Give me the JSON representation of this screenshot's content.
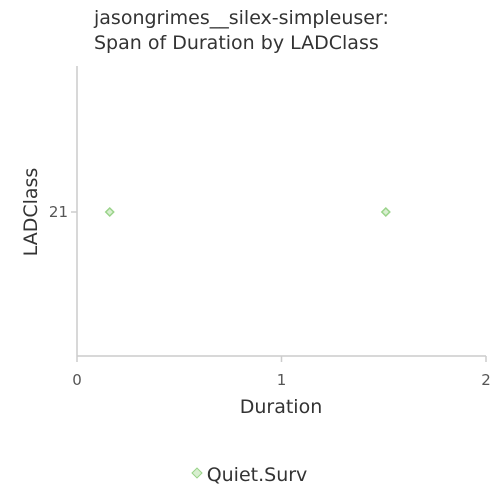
{
  "chart_data": {
    "type": "scatter",
    "title_line1": "jasongrimes__silex-simpleuser:",
    "title_line2": "Span of Duration by LADClass",
    "xlabel": "Duration",
    "ylabel": "LADClass",
    "xlim": [
      0,
      2
    ],
    "x_ticks": [
      "0",
      "1",
      "2"
    ],
    "y_ticks": [
      "21"
    ],
    "grid": false,
    "legend_position": "bottom",
    "series": [
      {
        "name": "Quiet.Surv",
        "color": "#9ad38a",
        "marker": "diamond",
        "points": [
          {
            "x": 0.16,
            "y": "21"
          },
          {
            "x": 1.51,
            "y": "21"
          }
        ]
      }
    ]
  }
}
